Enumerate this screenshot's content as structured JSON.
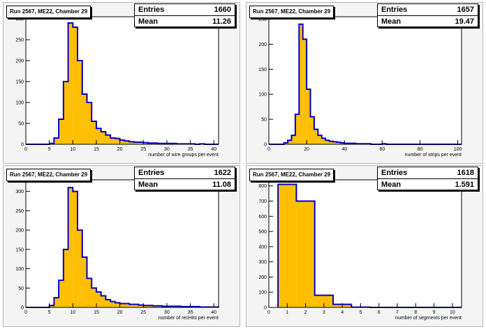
{
  "colors": {
    "fill": "#ffbf00",
    "line": "#0000cc"
  },
  "chart_data": [
    {
      "type": "bar",
      "title": "Run 2567, ME22, Chamber 29",
      "xlabel": "number of wire groups per event",
      "ylabel": "",
      "stats": {
        "entries_label": "Entries",
        "entries": "1660",
        "mean_label": "Mean",
        "mean": "11.26"
      },
      "xlim": [
        0,
        41
      ],
      "ylim": [
        0,
        305
      ],
      "xticks": [
        0,
        5,
        10,
        15,
        20,
        25,
        30,
        35,
        40
      ],
      "yticks": [
        0,
        50,
        100,
        150,
        200,
        250,
        300
      ],
      "bin_edges": [
        0,
        1,
        2,
        3,
        4,
        5,
        6,
        7,
        8,
        9,
        10,
        11,
        12,
        13,
        14,
        15,
        16,
        17,
        18,
        19,
        20,
        21,
        22,
        23,
        24,
        25,
        26,
        27,
        28,
        29,
        30,
        31,
        32,
        33,
        34,
        35,
        36,
        37,
        38,
        39,
        40,
        41
      ],
      "values": [
        0,
        0,
        0,
        0,
        0,
        2,
        15,
        60,
        150,
        290,
        280,
        200,
        120,
        100,
        55,
        38,
        30,
        22,
        15,
        14,
        10,
        8,
        6,
        5,
        5,
        4,
        3,
        3,
        2,
        2,
        2,
        2,
        1,
        1,
        1,
        1,
        0,
        1,
        0,
        0,
        0
      ]
    },
    {
      "type": "bar",
      "title": "Run 2567, ME22, Chamber 29",
      "xlabel": "number of strips per event",
      "ylabel": "",
      "stats": {
        "entries_label": "Entries",
        "entries": "1657",
        "mean_label": "Mean",
        "mean": "19.47"
      },
      "xlim": [
        0,
        102
      ],
      "ylim": [
        0,
        255
      ],
      "xticks": [
        0,
        20,
        40,
        60,
        80,
        100
      ],
      "yticks": [
        0,
        50,
        100,
        150,
        200,
        250
      ],
      "bin_edges": [
        0,
        2,
        4,
        6,
        8,
        10,
        12,
        14,
        16,
        18,
        20,
        22,
        24,
        26,
        28,
        30,
        32,
        34,
        36,
        38,
        40,
        42,
        44,
        46,
        48,
        50,
        52,
        54,
        56,
        58,
        60,
        62,
        64,
        66,
        68,
        70,
        72,
        74,
        76,
        78,
        80,
        82,
        84,
        86,
        88,
        90,
        92,
        94,
        96,
        98,
        100,
        102
      ],
      "values": [
        0,
        0,
        0,
        0,
        3,
        8,
        18,
        60,
        240,
        210,
        110,
        55,
        30,
        18,
        12,
        8,
        6,
        5,
        4,
        3,
        2,
        2,
        2,
        1,
        1,
        1,
        1,
        0,
        0,
        0,
        1,
        0,
        0,
        0,
        0,
        0,
        0,
        0,
        0,
        0,
        0,
        0,
        0,
        0,
        0,
        0,
        0,
        0,
        0,
        0,
        0
      ]
    },
    {
      "type": "bar",
      "title": "Run 2567, ME22, Chamber 29",
      "xlabel": "number of recHits per event",
      "ylabel": "",
      "stats": {
        "entries_label": "Entries",
        "entries": "1622",
        "mean_label": "Mean",
        "mean": "11.08"
      },
      "xlim": [
        0,
        41
      ],
      "ylim": [
        0,
        330
      ],
      "xticks": [
        0,
        5,
        10,
        15,
        20,
        25,
        30,
        35,
        40
      ],
      "yticks": [
        0,
        50,
        100,
        150,
        200,
        250,
        300
      ],
      "bin_edges": [
        0,
        1,
        2,
        3,
        4,
        5,
        6,
        7,
        8,
        9,
        10,
        11,
        12,
        13,
        14,
        15,
        16,
        17,
        18,
        19,
        20,
        21,
        22,
        23,
        24,
        25,
        26,
        27,
        28,
        29,
        30,
        31,
        32,
        33,
        34,
        35,
        36,
        37,
        38,
        39,
        40,
        41
      ],
      "values": [
        0,
        0,
        0,
        0,
        0,
        5,
        25,
        70,
        150,
        310,
        300,
        200,
        130,
        75,
        50,
        40,
        30,
        20,
        15,
        12,
        10,
        10,
        8,
        8,
        6,
        5,
        5,
        4,
        4,
        3,
        3,
        3,
        3,
        2,
        2,
        2,
        2,
        1,
        1,
        1,
        1
      ]
    },
    {
      "type": "bar",
      "title": "Run 2567, ME22, Chamber 29",
      "xlabel": "number of segments per event",
      "ylabel": "",
      "stats": {
        "entries_label": "Entries",
        "entries": "1618",
        "mean_label": "Mean",
        "mean": "1.591"
      },
      "xlim": [
        0,
        10.5
      ],
      "ylim": [
        0,
        840
      ],
      "xticks": [
        0,
        1,
        2,
        3,
        4,
        5,
        6,
        7,
        8,
        9,
        10
      ],
      "yticks": [
        0,
        100,
        200,
        300,
        400,
        500,
        600,
        700,
        800
      ],
      "bin_edges": [
        0.5,
        1.5,
        2.5,
        3.5,
        4.5,
        5.5,
        6.5,
        7.5,
        8.5,
        9.5,
        10.5
      ],
      "values": [
        810,
        700,
        80,
        20,
        2,
        0,
        0,
        0,
        0,
        0
      ]
    }
  ]
}
